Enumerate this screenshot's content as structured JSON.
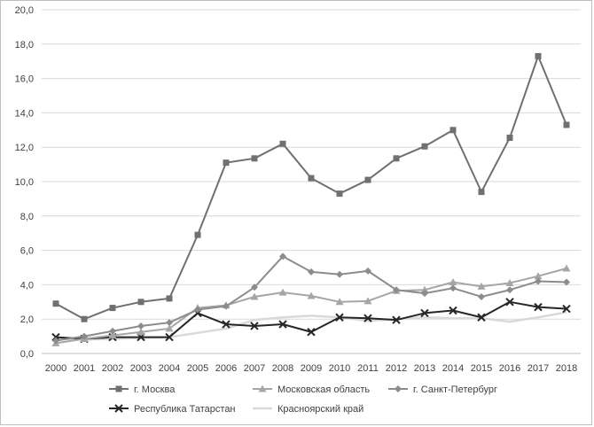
{
  "chart_data": {
    "type": "line",
    "title": "",
    "xlabel": "",
    "ylabel": "",
    "x": [
      "2000",
      "2001",
      "2002",
      "2003",
      "2004",
      "2005",
      "2006",
      "2007",
      "2008",
      "2009",
      "2010",
      "2011",
      "2012",
      "2013",
      "2014",
      "2015",
      "2016",
      "2017",
      "2018"
    ],
    "ylim": [
      0,
      20
    ],
    "y_ticks": [
      "0,0",
      "2,0",
      "4,0",
      "6,0",
      "8,0",
      "10,0",
      "12,0",
      "14,0",
      "16,0",
      "18,0",
      "20,0"
    ],
    "grid": true,
    "legend_position": "bottom",
    "series": [
      {
        "name": "г. Москва",
        "color": "#707070",
        "marker": "square",
        "values": [
          2.9,
          2.0,
          2.65,
          3.0,
          3.2,
          6.9,
          11.1,
          11.35,
          12.2,
          10.2,
          9.3,
          10.1,
          11.35,
          12.05,
          13.0,
          9.4,
          12.55,
          17.3,
          13.3
        ]
      },
      {
        "name": "Московская область",
        "color": "#a6a6a6",
        "marker": "triangle",
        "values": [
          0.6,
          0.85,
          1.05,
          1.25,
          1.45,
          2.65,
          2.8,
          3.3,
          3.55,
          3.35,
          3.0,
          3.05,
          3.65,
          3.7,
          4.15,
          3.9,
          4.1,
          4.5,
          4.95
        ]
      },
      {
        "name": "г. Санкт-Петербург",
        "color": "#8c8c8c",
        "marker": "diamond",
        "values": [
          0.75,
          1.0,
          1.3,
          1.6,
          1.8,
          2.55,
          2.75,
          3.85,
          5.65,
          4.75,
          4.6,
          4.8,
          3.7,
          3.5,
          3.8,
          3.3,
          3.7,
          4.2,
          4.15
        ]
      },
      {
        "name": "Республика Татарстан",
        "color": "#262626",
        "marker": "x",
        "values": [
          0.95,
          0.85,
          0.95,
          0.95,
          0.95,
          2.35,
          1.7,
          1.6,
          1.7,
          1.25,
          2.1,
          2.05,
          1.95,
          2.35,
          2.5,
          2.1,
          3.0,
          2.7,
          2.6
        ]
      },
      {
        "name": "Красноярский край",
        "color": "#d9d9d9",
        "marker": "line",
        "values": [
          0.85,
          0.8,
          0.85,
          0.9,
          0.95,
          1.2,
          1.45,
          1.95,
          2.1,
          2.2,
          2.1,
          1.9,
          2.0,
          2.1,
          2.05,
          2.05,
          1.85,
          2.1,
          2.4
        ]
      }
    ]
  }
}
